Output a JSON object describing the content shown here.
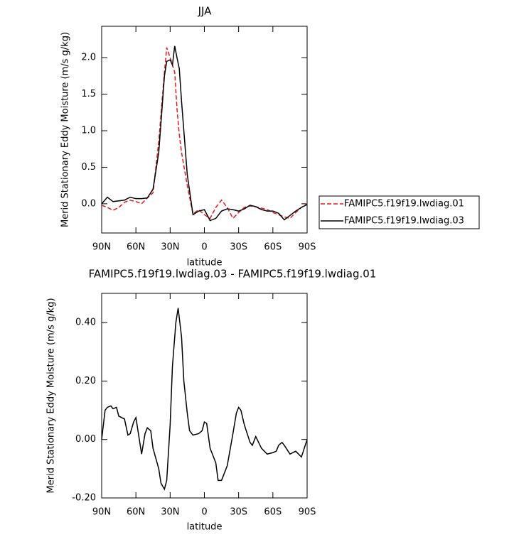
{
  "chart_data": [
    {
      "type": "line",
      "title": "JJA",
      "xlabel": "latitude",
      "ylabel": "Merid Stationary Eddy Moisture (m/s g/kg)",
      "x": [
        90,
        85,
        80,
        75,
        70,
        65,
        60,
        55,
        50,
        45,
        40,
        35,
        33,
        30,
        28,
        26,
        24,
        22,
        20,
        15,
        10,
        5,
        0,
        -5,
        -10,
        -15,
        -20,
        -25,
        -30,
        -35,
        -40,
        -45,
        -50,
        -55,
        -60,
        -65,
        -70,
        -75,
        -80,
        -85,
        -90
      ],
      "series": [
        {
          "name": "FAMIPC5.f19f19.lwdiag.01",
          "color": "#e41a1c",
          "dash": true,
          "values": [
            -0.02,
            -0.05,
            -0.09,
            -0.05,
            0.02,
            0.05,
            0.03,
            0.0,
            0.08,
            0.15,
            0.85,
            1.8,
            2.14,
            2.0,
            1.9,
            1.8,
            1.3,
            0.95,
            0.7,
            0.25,
            -0.14,
            -0.08,
            -0.15,
            -0.2,
            -0.05,
            0.05,
            -0.05,
            -0.2,
            -0.12,
            -0.05,
            -0.03,
            -0.04,
            -0.06,
            -0.08,
            -0.12,
            -0.15,
            -0.18,
            -0.2,
            -0.12,
            -0.05,
            0.0
          ]
        },
        {
          "name": "FAMIPC5.f19f19.lwdiag.03",
          "color": "#000000",
          "dash": false,
          "values": [
            0.0,
            0.09,
            0.03,
            0.04,
            0.05,
            0.09,
            0.07,
            0.07,
            0.08,
            0.2,
            0.7,
            1.75,
            1.95,
            1.97,
            1.9,
            2.16,
            2.0,
            1.85,
            1.4,
            0.4,
            -0.15,
            -0.1,
            -0.08,
            -0.23,
            -0.2,
            -0.1,
            -0.07,
            -0.08,
            -0.1,
            -0.07,
            -0.02,
            -0.04,
            -0.08,
            -0.1,
            -0.1,
            -0.13,
            -0.22,
            -0.16,
            -0.1,
            -0.05,
            -0.01
          ]
        }
      ],
      "xlim": [
        90,
        -90
      ],
      "xticks": [
        {
          "value": 90,
          "label": "90N"
        },
        {
          "value": 60,
          "label": "60N"
        },
        {
          "value": 30,
          "label": "30N"
        },
        0,
        {
          "value": -30,
          "label": "30S"
        },
        {
          "value": -60,
          "label": "60S"
        },
        {
          "value": -90,
          "label": "90S"
        }
      ],
      "ylim": [
        -0.4,
        2.43
      ],
      "yticks": [
        {
          "value": 0,
          "label": "0.0"
        },
        0.5,
        {
          "value": 1,
          "label": "1.0"
        },
        1.5,
        {
          "value": 2,
          "label": "2.0"
        }
      ],
      "legend": "right"
    },
    {
      "type": "line",
      "title": "FAMIPC5.f19f19.lwdiag.03 - FAMIPC5.f19f19.lwdiag.01",
      "xlabel": "latitude",
      "ylabel": "Merid Stationary Eddy Moisture (m/s g/kg)",
      "x": [
        90,
        87,
        85,
        82,
        80,
        77,
        75,
        70,
        67,
        65,
        62,
        60,
        57,
        55,
        52,
        50,
        47,
        45,
        40,
        38,
        35,
        33,
        30,
        28,
        25,
        23,
        20,
        18,
        15,
        13,
        10,
        5,
        2,
        0,
        -2,
        -5,
        -10,
        -12,
        -15,
        -20,
        -25,
        -28,
        -30,
        -32,
        -35,
        -40,
        -42,
        -45,
        -50,
        -55,
        -60,
        -63,
        -65,
        -68,
        -70,
        -75,
        -80,
        -85,
        -90
      ],
      "values": [
        0.0,
        0.1,
        0.11,
        0.115,
        0.105,
        0.11,
        0.08,
        0.07,
        0.015,
        0.02,
        0.06,
        0.075,
        0.0,
        -0.05,
        0.02,
        0.04,
        0.03,
        -0.03,
        -0.1,
        -0.15,
        -0.17,
        -0.14,
        0.05,
        0.25,
        0.4,
        0.45,
        0.35,
        0.2,
        0.09,
        0.03,
        0.015,
        0.02,
        0.03,
        0.06,
        0.055,
        -0.03,
        -0.08,
        -0.14,
        -0.14,
        -0.09,
        0.02,
        0.09,
        0.11,
        0.1,
        0.05,
        -0.01,
        -0.02,
        0.01,
        -0.03,
        -0.05,
        -0.045,
        -0.04,
        -0.02,
        -0.01,
        -0.02,
        -0.05,
        -0.04,
        -0.06,
        0.0
      ],
      "color": "#000000",
      "xlim": [
        90,
        -90
      ],
      "xticks": [
        {
          "value": 90,
          "label": "90N"
        },
        {
          "value": 60,
          "label": "60N"
        },
        {
          "value": 30,
          "label": "30N"
        },
        0,
        {
          "value": -30,
          "label": "30S"
        },
        {
          "value": -60,
          "label": "60S"
        },
        {
          "value": -90,
          "label": "90S"
        }
      ],
      "ylim": [
        -0.2,
        0.5
      ],
      "yticks": [
        {
          "value": -0.2,
          "label": "-0.20"
        },
        {
          "value": 0,
          "label": "0.00"
        },
        {
          "value": 0.2,
          "label": "0.20"
        },
        {
          "value": 0.4,
          "label": "0.40"
        }
      ]
    }
  ]
}
